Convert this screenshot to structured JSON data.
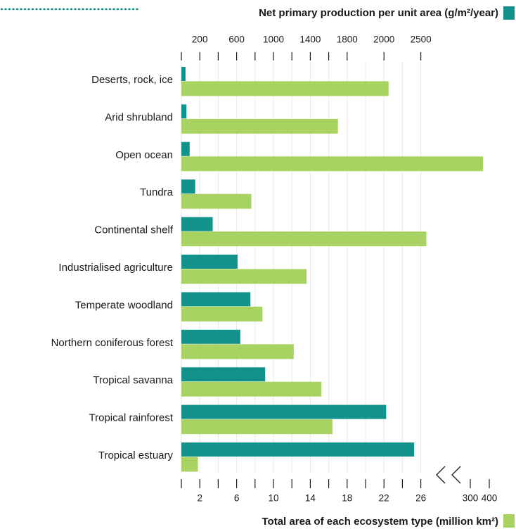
{
  "chart_data": {
    "type": "bar",
    "orientation": "horizontal",
    "categories": [
      "Deserts, rock, ice",
      "Arid shrubland",
      "Open ocean",
      "Tundra",
      "Continental shelf",
      "Industrialised agriculture",
      "Temperate woodland",
      "Northern coniferous forest",
      "Tropical savanna",
      "Tropical rainforest",
      "Tropical estuary"
    ],
    "series": [
      {
        "name": "Net primary production per unit area (g/m²/year)",
        "color": "#13918b",
        "axis": "x2",
        "values": [
          45,
          55,
          90,
          150,
          340,
          610,
          750,
          640,
          910,
          2030,
          2410
        ]
      },
      {
        "name": "Total area of each ecosystem type (million km²)",
        "color": "#a8d362",
        "axis": "x",
        "values": [
          22.5,
          17,
          367,
          7.6,
          26.6,
          13.6,
          8.8,
          12.2,
          15.2,
          16.4,
          1.8
        ]
      }
    ],
    "x2ticks": [
      200,
      600,
      1000,
      1400,
      1800,
      2000,
      2500
    ],
    "x2minor_ticks": [
      0,
      400,
      800,
      1200,
      1600
    ],
    "xticks": [
      2,
      6,
      10,
      14,
      18,
      22,
      26,
      300,
      400
    ],
    "xminor_ticks": [
      0,
      4,
      8,
      12,
      16,
      20,
      24
    ],
    "axis_break": true,
    "grid": true
  }
}
